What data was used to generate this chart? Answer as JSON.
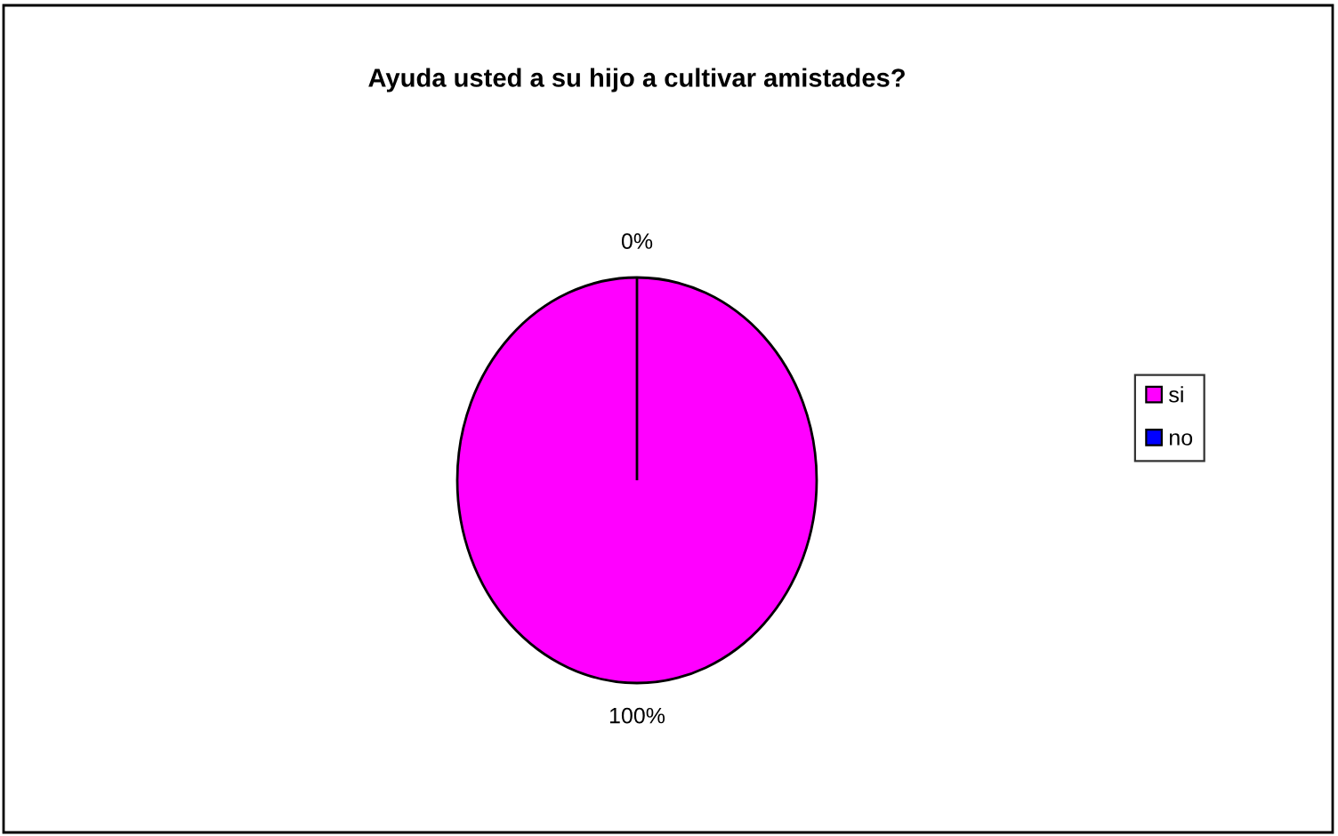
{
  "chart_data": {
    "type": "pie",
    "title": "Ayuda usted a su hijo a cultivar amistades?",
    "categories": [
      "si",
      "no"
    ],
    "values": [
      100,
      0
    ],
    "colors": [
      "#ff00ff",
      "#0000ff"
    ],
    "value_labels": [
      "100%",
      "0%"
    ],
    "legend": "right"
  }
}
